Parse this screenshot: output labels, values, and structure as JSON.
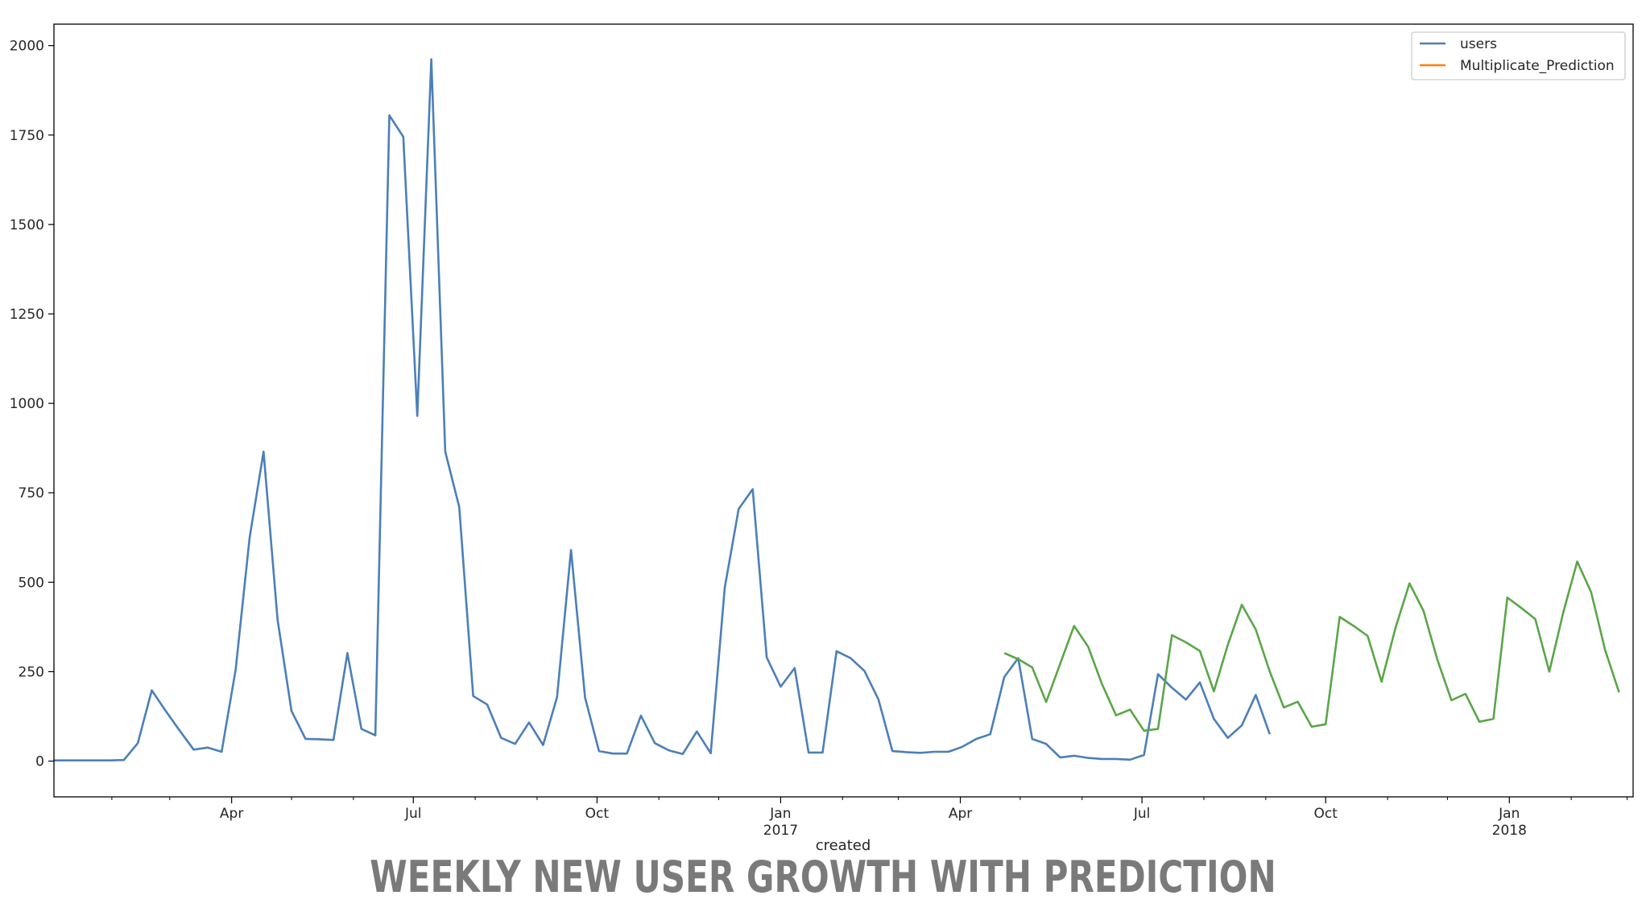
{
  "caption": "WEEKLY NEW USER GROWTH WITH PREDICTION",
  "colors": {
    "users": "#4c7fb8",
    "prediction_orange": "#ff7f0e",
    "prediction_overlay": "#5aa648"
  },
  "chart_data": {
    "type": "line",
    "xlabel": "created",
    "ylabel": "",
    "x_type": "date",
    "xlim": [
      "2016-01-03",
      "2018-03-04"
    ],
    "ylim": [
      -100,
      2060
    ],
    "grid": false,
    "legend": {
      "position": "top-right",
      "entries": [
        "users",
        "Multiplicate_Prediction"
      ]
    },
    "y_ticks": [
      {
        "value": 0,
        "label": "0"
      },
      {
        "value": 250,
        "label": "250"
      },
      {
        "value": 500,
        "label": "500"
      },
      {
        "value": 750,
        "label": "750"
      },
      {
        "value": 1000,
        "label": "1000"
      },
      {
        "value": 1250,
        "label": "1250"
      },
      {
        "value": 1500,
        "label": "1500"
      },
      {
        "value": 1750,
        "label": "1750"
      },
      {
        "value": 2000,
        "label": "2000"
      }
    ],
    "x_ticks": [
      {
        "date": "2016-04-01",
        "label": "Apr"
      },
      {
        "date": "2016-07-01",
        "label": "Jul"
      },
      {
        "date": "2016-10-01",
        "label": "Oct"
      },
      {
        "date": "2017-01-01",
        "label": "Jan",
        "sublabel": "2017"
      },
      {
        "date": "2017-04-01",
        "label": "Apr"
      },
      {
        "date": "2017-07-01",
        "label": "Jul"
      },
      {
        "date": "2017-10-01",
        "label": "Oct"
      },
      {
        "date": "2018-01-01",
        "label": "Jan",
        "sublabel": "2018"
      }
    ],
    "series": [
      {
        "name": "users",
        "color": "#4c7fb8",
        "points": [
          [
            "2016-01-03",
            2
          ],
          [
            "2016-01-10",
            2
          ],
          [
            "2016-01-17",
            2
          ],
          [
            "2016-01-24",
            2
          ],
          [
            "2016-01-31",
            2
          ],
          [
            "2016-02-07",
            3
          ],
          [
            "2016-02-14",
            50
          ],
          [
            "2016-02-21",
            198
          ],
          [
            "2016-02-28",
            140
          ],
          [
            "2016-03-06",
            85
          ],
          [
            "2016-03-13",
            32
          ],
          [
            "2016-03-20",
            38
          ],
          [
            "2016-03-27",
            26
          ],
          [
            "2016-04-03",
            255
          ],
          [
            "2016-04-10",
            625
          ],
          [
            "2016-04-17",
            865
          ],
          [
            "2016-04-24",
            395
          ],
          [
            "2016-05-01",
            140
          ],
          [
            "2016-05-08",
            62
          ],
          [
            "2016-05-15",
            61
          ],
          [
            "2016-05-22",
            59
          ],
          [
            "2016-05-29",
            302
          ],
          [
            "2016-06-05",
            90
          ],
          [
            "2016-06-12",
            72
          ],
          [
            "2016-06-19",
            1805
          ],
          [
            "2016-06-26",
            1745
          ],
          [
            "2016-07-03",
            965
          ],
          [
            "2016-07-10",
            1962
          ],
          [
            "2016-07-17",
            865
          ],
          [
            "2016-07-24",
            710
          ],
          [
            "2016-07-31",
            182
          ],
          [
            "2016-08-07",
            158
          ],
          [
            "2016-08-14",
            65
          ],
          [
            "2016-08-21",
            48
          ],
          [
            "2016-08-28",
            108
          ],
          [
            "2016-09-04",
            45
          ],
          [
            "2016-09-11",
            178
          ],
          [
            "2016-09-18",
            590
          ],
          [
            "2016-09-25",
            178
          ],
          [
            "2016-10-02",
            28
          ],
          [
            "2016-10-09",
            21
          ],
          [
            "2016-10-16",
            21
          ],
          [
            "2016-10-23",
            127
          ],
          [
            "2016-10-30",
            50
          ],
          [
            "2016-11-06",
            30
          ],
          [
            "2016-11-13",
            20
          ],
          [
            "2016-11-20",
            83
          ],
          [
            "2016-11-27",
            22
          ],
          [
            "2016-12-04",
            485
          ],
          [
            "2016-12-11",
            705
          ],
          [
            "2016-12-18",
            760
          ],
          [
            "2016-12-25",
            290
          ],
          [
            "2017-01-01",
            208
          ],
          [
            "2017-01-08",
            260
          ],
          [
            "2017-01-15",
            24
          ],
          [
            "2017-01-22",
            24
          ],
          [
            "2017-01-29",
            307
          ],
          [
            "2017-02-05",
            288
          ],
          [
            "2017-02-12",
            252
          ],
          [
            "2017-02-19",
            172
          ],
          [
            "2017-02-26",
            28
          ],
          [
            "2017-03-05",
            25
          ],
          [
            "2017-03-12",
            23
          ],
          [
            "2017-03-19",
            26
          ],
          [
            "2017-03-26",
            26
          ],
          [
            "2017-04-02",
            40
          ],
          [
            "2017-04-09",
            62
          ],
          [
            "2017-04-16",
            75
          ],
          [
            "2017-04-23",
            235
          ],
          [
            "2017-04-30",
            288
          ],
          [
            "2017-05-07",
            62
          ],
          [
            "2017-05-14",
            48
          ],
          [
            "2017-05-21",
            10
          ],
          [
            "2017-05-28",
            15
          ],
          [
            "2017-06-04",
            9
          ],
          [
            "2017-06-11",
            6
          ],
          [
            "2017-06-18",
            6
          ],
          [
            "2017-06-25",
            4
          ],
          [
            "2017-07-02",
            17
          ],
          [
            "2017-07-09",
            243
          ],
          [
            "2017-07-16",
            205
          ],
          [
            "2017-07-23",
            172
          ],
          [
            "2017-07-30",
            220
          ],
          [
            "2017-08-06",
            118
          ],
          [
            "2017-08-13",
            65
          ],
          [
            "2017-08-20",
            100
          ],
          [
            "2017-08-27",
            185
          ],
          [
            "2017-09-03",
            75
          ]
        ]
      },
      {
        "name": "Multiplicate_Prediction",
        "color": "#5aa648",
        "points": [
          [
            "2017-04-23",
            302
          ],
          [
            "2017-04-30",
            285
          ],
          [
            "2017-05-07",
            262
          ],
          [
            "2017-05-14",
            165
          ],
          [
            "2017-05-21",
            272
          ],
          [
            "2017-05-28",
            378
          ],
          [
            "2017-06-04",
            320
          ],
          [
            "2017-06-11",
            215
          ],
          [
            "2017-06-18",
            128
          ],
          [
            "2017-06-25",
            144
          ],
          [
            "2017-07-02",
            85
          ],
          [
            "2017-07-09",
            90
          ],
          [
            "2017-07-16",
            352
          ],
          [
            "2017-07-23",
            332
          ],
          [
            "2017-07-30",
            308
          ],
          [
            "2017-08-06",
            195
          ],
          [
            "2017-08-13",
            325
          ],
          [
            "2017-08-20",
            437
          ],
          [
            "2017-08-27",
            368
          ],
          [
            "2017-09-03",
            250
          ],
          [
            "2017-09-10",
            150
          ],
          [
            "2017-09-17",
            166
          ],
          [
            "2017-09-24",
            96
          ],
          [
            "2017-10-01",
            103
          ],
          [
            "2017-10-08",
            403
          ],
          [
            "2017-10-15",
            378
          ],
          [
            "2017-10-22",
            350
          ],
          [
            "2017-10-29",
            222
          ],
          [
            "2017-11-05",
            373
          ],
          [
            "2017-11-12",
            497
          ],
          [
            "2017-11-19",
            420
          ],
          [
            "2017-11-26",
            283
          ],
          [
            "2017-12-03",
            170
          ],
          [
            "2017-12-10",
            188
          ],
          [
            "2017-12-17",
            110
          ],
          [
            "2017-12-24",
            118
          ],
          [
            "2017-12-31",
            457
          ],
          [
            "2018-01-07",
            428
          ],
          [
            "2018-01-14",
            397
          ],
          [
            "2018-01-21",
            250
          ],
          [
            "2018-01-28",
            415
          ],
          [
            "2018-02-04",
            558
          ],
          [
            "2018-02-11",
            472
          ],
          [
            "2018-02-18",
            310
          ],
          [
            "2018-02-25",
            192
          ]
        ]
      }
    ]
  }
}
